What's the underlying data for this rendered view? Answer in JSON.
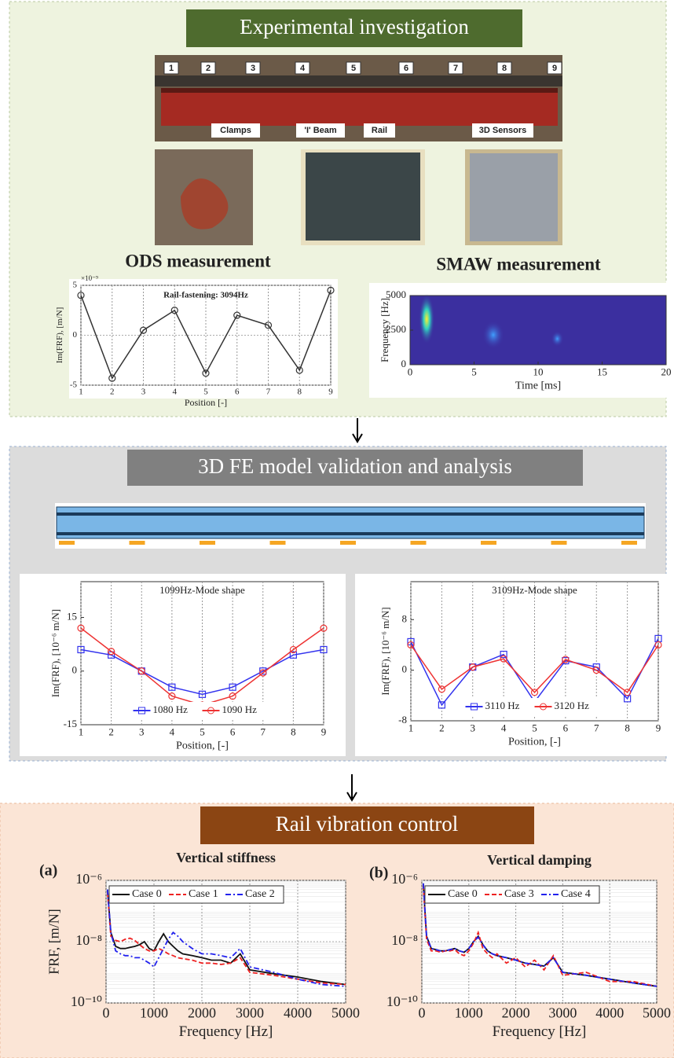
{
  "panels": [
    {
      "title": "Experimental investigation",
      "photo_labels": {
        "positions": [
          "1",
          "2",
          "3",
          "4",
          "5",
          "6",
          "7",
          "8",
          "9"
        ],
        "callouts": [
          "Clamps",
          "'I' Beam",
          "Rail",
          "3D Sensors"
        ]
      },
      "subtitles": [
        "ODS measurement",
        "SMAW measurement"
      ]
    },
    {
      "title": "3D FE model validation and analysis"
    },
    {
      "title": "Rail vibration control"
    }
  ],
  "chart_data": [
    {
      "type": "line",
      "title": "Rail-fastening: 3094Hz",
      "y_exponent": "×10⁻⁹",
      "xlabel": "Position [-]",
      "ylabel": "Im(FRF), [m/N]",
      "x": [
        1,
        2,
        3,
        4,
        5,
        6,
        7,
        8,
        9
      ],
      "xlim": [
        1,
        9
      ],
      "xticks": [
        1,
        2,
        3,
        4,
        5,
        6,
        7,
        8,
        9
      ],
      "ylim": [
        -5,
        5
      ],
      "yticks": [
        -5,
        0,
        5
      ],
      "grid": "xy",
      "series": [
        {
          "color": "#333333",
          "marker": "circle",
          "values": [
            4,
            -4.3,
            0.5,
            2.5,
            -3.8,
            2,
            1,
            -3.5,
            4.5
          ]
        }
      ]
    },
    {
      "type": "spectrogram",
      "xlabel": "Time [ms]",
      "ylabel": "Frequency [Hz]",
      "color": "#3b2f9f",
      "xlim": [
        0,
        20
      ],
      "xticks": [
        0,
        5,
        10,
        15,
        20
      ],
      "ylim": [
        0,
        5000
      ],
      "yticks": [
        0,
        2500,
        5000
      ]
    },
    {
      "type": "line",
      "title": "1099Hz-Mode shape",
      "xlabel": "Position, [-]",
      "ylabel": "Im(FRF), [10⁻⁶ m/N]",
      "x": [
        1,
        2,
        3,
        4,
        5,
        6,
        7,
        8,
        9
      ],
      "xlim": [
        1,
        9
      ],
      "xticks": [
        1,
        2,
        3,
        4,
        5,
        6,
        7,
        8,
        9
      ],
      "ylim": [
        -15,
        25
      ],
      "yticks": [
        -15,
        0,
        15
      ],
      "grid": "x",
      "legend": "bottom",
      "series": [
        {
          "name": "1080 Hz",
          "color": "#3333ee",
          "marker": "square",
          "values": [
            6,
            4.5,
            0,
            -4.5,
            -6.5,
            -4.5,
            0,
            4.5,
            6
          ]
        },
        {
          "name": "1090 Hz",
          "color": "#ee3333",
          "marker": "circle",
          "values": [
            12,
            5.5,
            0,
            -7,
            -9.5,
            -7,
            -0.5,
            6,
            12
          ]
        }
      ]
    },
    {
      "type": "line",
      "title": "3109Hz-Mode shape",
      "xlabel": "Position, [-]",
      "ylabel": "Im(FRF), [10⁻⁶ m/N]",
      "x": [
        1,
        2,
        3,
        4,
        5,
        6,
        7,
        8,
        9
      ],
      "xlim": [
        1,
        9
      ],
      "xticks": [
        1,
        2,
        3,
        4,
        5,
        6,
        7,
        8,
        9
      ],
      "ylim": [
        -8,
        14
      ],
      "yticks": [
        -8,
        0,
        8
      ],
      "grid": "x",
      "legend": "bottom",
      "series": [
        {
          "name": "3110 Hz",
          "color": "#3333ee",
          "marker": "square",
          "values": [
            4.5,
            -5.5,
            0.5,
            2.5,
            -5,
            1.5,
            0.5,
            -4.5,
            5
          ]
        },
        {
          "name": "3120 Hz",
          "color": "#ee3333",
          "marker": "circle",
          "values": [
            4,
            -3,
            0.5,
            1.8,
            -3.5,
            1.7,
            0,
            -3.5,
            4
          ]
        }
      ]
    },
    {
      "type": "line",
      "label": "(a)",
      "title": "Vertical stiffness",
      "xlabel": "Frequency [Hz]",
      "ylabel": "FRF, [m/N]",
      "log_y": true,
      "grid": "xy",
      "legend": "top-left",
      "x": [
        30,
        100,
        200,
        300,
        400,
        500,
        600,
        700,
        800,
        900,
        1000,
        1100,
        1200,
        1300,
        1400,
        1500,
        1600,
        1800,
        2000,
        2200,
        2400,
        2600,
        2800,
        3000,
        3500,
        4000,
        4500,
        5000
      ],
      "xlim": [
        0,
        5000
      ],
      "xticks": [
        0,
        1000,
        2000,
        3000,
        4000,
        5000
      ],
      "ylim": [
        1e-10,
        1e-06
      ],
      "yticks": [
        {
          "value": 1e-10,
          "label": "10⁻¹⁰"
        },
        {
          "value": 1e-08,
          "label": "10⁻⁸"
        },
        {
          "value": 1e-06,
          "label": "10⁻⁶"
        }
      ],
      "series": [
        {
          "name": "Case 0",
          "color": "#111111",
          "dash": "solid",
          "values": [
            5e-07,
            2e-08,
            7e-09,
            6e-09,
            6e-09,
            6.5e-09,
            7e-09,
            8e-09,
            1e-08,
            6e-09,
            5e-09,
            1e-08,
            1.8e-08,
            1e-08,
            7e-09,
            5e-09,
            4e-09,
            3.5e-09,
            3e-09,
            2.5e-09,
            2.5e-09,
            2e-09,
            4e-09,
            1.2e-09,
            9e-10,
            7e-10,
            5e-10,
            4e-10
          ]
        },
        {
          "name": "Case 1",
          "color": "#ee2222",
          "dash": "dashed",
          "values": [
            4e-07,
            1.5e-08,
            1.1e-08,
            1e-08,
            1.2e-08,
            1.3e-08,
            1.1e-08,
            8e-09,
            6e-09,
            5e-09,
            5e-09,
            6e-09,
            5e-09,
            4e-09,
            3.5e-09,
            3e-09,
            2.8e-09,
            2.5e-09,
            2e-09,
            2e-09,
            1.8e-09,
            2e-09,
            3e-09,
            1e-09,
            8e-10,
            6e-10,
            4.5e-10,
            4e-10
          ]
        },
        {
          "name": "Case 2",
          "color": "#2222ee",
          "dash": "dashdot",
          "values": [
            5e-07,
            2e-08,
            5e-09,
            4e-09,
            3.5e-09,
            3.5e-09,
            3e-09,
            3e-09,
            2.5e-09,
            2e-09,
            1.5e-09,
            3e-09,
            6e-09,
            1.2e-08,
            2e-08,
            1.5e-08,
            1e-08,
            6e-09,
            4e-09,
            4e-09,
            3.5e-09,
            3e-09,
            6e-09,
            1.5e-09,
            1e-09,
            6e-10,
            4e-10,
            3.5e-10
          ]
        }
      ]
    },
    {
      "type": "line",
      "label": "(b)",
      "title": "Vertical damping",
      "xlabel": "Frequency [Hz]",
      "log_y": true,
      "grid": "xy",
      "legend": "top-left",
      "x": [
        30,
        100,
        200,
        300,
        400,
        500,
        600,
        700,
        800,
        900,
        1000,
        1100,
        1200,
        1300,
        1400,
        1500,
        1600,
        1800,
        2000,
        2200,
        2400,
        2600,
        2800,
        3000,
        3500,
        4000,
        4500,
        5000
      ],
      "xlim": [
        0,
        5000
      ],
      "xticks": [
        0,
        1000,
        2000,
        3000,
        4000,
        5000
      ],
      "ylim": [
        1e-10,
        1e-06
      ],
      "yticks": [
        {
          "value": 1e-10,
          "label": "10⁻¹⁰"
        },
        {
          "value": 1e-08,
          "label": "10⁻⁸"
        },
        {
          "value": 1e-06,
          "label": "10⁻⁶"
        }
      ],
      "series": [
        {
          "name": "Case 0",
          "color": "#111111",
          "dash": "solid",
          "values": [
            8e-07,
            1.5e-08,
            6e-09,
            5.5e-09,
            5e-09,
            5e-09,
            5.5e-09,
            6e-09,
            5e-09,
            4.5e-09,
            6e-09,
            1e-08,
            1.5e-08,
            8e-09,
            5e-09,
            4e-09,
            3.5e-09,
            3e-09,
            2.5e-09,
            2e-09,
            1.8e-09,
            1.6e-09,
            3e-09,
            1e-09,
            8e-10,
            6e-10,
            4.5e-10,
            3.5e-10
          ]
        },
        {
          "name": "Case 3",
          "color": "#ee2222",
          "dash": "dashed",
          "values": [
            7e-07,
            1.2e-08,
            5e-09,
            5e-09,
            4.5e-09,
            5e-09,
            5e-09,
            5.5e-09,
            4e-09,
            3.5e-09,
            5e-09,
            9e-09,
            2e-08,
            6e-09,
            4e-09,
            3e-09,
            4e-09,
            2e-09,
            3e-09,
            1.5e-09,
            2.5e-09,
            1.2e-09,
            3.5e-09,
            8e-10,
            1e-09,
            5e-10,
            5e-10,
            3.5e-10
          ]
        },
        {
          "name": "Case 4",
          "color": "#2222ee",
          "dash": "dashdot",
          "values": [
            8e-07,
            1.5e-08,
            6e-09,
            5.5e-09,
            5e-09,
            5e-09,
            5.5e-09,
            6e-09,
            5e-09,
            4.5e-09,
            6e-09,
            1e-08,
            1.4e-08,
            8e-09,
            5e-09,
            4e-09,
            3.5e-09,
            3e-09,
            2.5e-09,
            2e-09,
            1.8e-09,
            1.6e-09,
            3e-09,
            1e-09,
            8e-10,
            6e-10,
            4.5e-10,
            3.5e-10
          ]
        }
      ]
    }
  ]
}
